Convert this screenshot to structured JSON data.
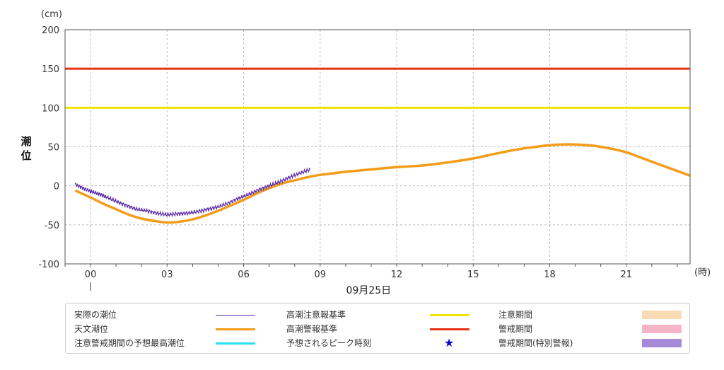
{
  "chart_data": {
    "type": "line",
    "yunit": "(cm)",
    "ylabel": "潮位",
    "xunit": "(時)",
    "date_label": "09月25日",
    "ylim": [
      -100,
      200
    ],
    "yticks": [
      -100,
      -50,
      0,
      50,
      100,
      150,
      200
    ],
    "xlim": [
      -1,
      23.5
    ],
    "xticks": [
      0,
      3,
      6,
      9,
      12,
      15,
      18,
      21
    ],
    "xtick_labels": [
      "00",
      "03",
      "06",
      "09",
      "12",
      "15",
      "18",
      "21"
    ],
    "grid": true,
    "thresholds": [
      {
        "name": "高潮警報基準",
        "value": 150,
        "color": "#e53314"
      },
      {
        "name": "高潮注意報基準",
        "value": 100,
        "color": "#f2e200"
      }
    ],
    "series": [
      {
        "name": "天文潮位",
        "color": "#f39c1a",
        "x": [
          -0.6,
          0,
          0.5,
          1,
          1.5,
          2,
          2.5,
          3,
          3.5,
          4,
          4.5,
          5,
          5.5,
          6,
          6.5,
          7,
          7.5,
          8,
          8.5,
          9,
          9.5,
          10,
          11,
          12,
          13,
          14,
          15,
          16,
          17,
          18,
          18.5,
          19,
          19.5,
          20,
          20.5,
          21,
          21.5,
          22,
          22.5,
          23,
          23.5
        ],
        "y": [
          -6,
          -15,
          -23,
          -30,
          -37,
          -42,
          -45,
          -47,
          -46,
          -43,
          -38,
          -32,
          -25,
          -18,
          -10,
          -3,
          3,
          7,
          11,
          14,
          16,
          18,
          21,
          24,
          26,
          30,
          35,
          42,
          48,
          52,
          53,
          53,
          52,
          50,
          47,
          43,
          37,
          31,
          25,
          19,
          13
        ]
      },
      {
        "name": "実際の潮位",
        "color": "#5a2aa8",
        "x": [
          -0.6,
          -0.3,
          0,
          0.3,
          0.6,
          1,
          1.4,
          1.8,
          2.2,
          2.6,
          3,
          3.4,
          3.8,
          4.2,
          4.6,
          5,
          5.4,
          5.8,
          6.2,
          6.6,
          7,
          7.4,
          7.8,
          8.2,
          8.6
        ],
        "y": [
          2,
          -3,
          -7,
          -10,
          -14,
          -20,
          -25,
          -30,
          -32,
          -35,
          -37,
          -36,
          -35,
          -33,
          -30,
          -27,
          -22,
          -16,
          -11,
          -5,
          0,
          5,
          11,
          16,
          21
        ]
      }
    ]
  },
  "legend": {
    "items": [
      {
        "label": "実際の潮位",
        "kind": "line",
        "color": "#5a2aa8"
      },
      {
        "label": "高潮注意報基準",
        "kind": "line",
        "color": "#f2e200"
      },
      {
        "label": "注意期間",
        "kind": "box",
        "color": "#f9dcb3"
      },
      {
        "label": "天文潮位",
        "kind": "line",
        "color": "#f39c1a"
      },
      {
        "label": "高潮警報基準",
        "kind": "line",
        "color": "#e53314"
      },
      {
        "label": "警戒期間",
        "kind": "box",
        "color": "#f7b4c6"
      },
      {
        "label": "注意警戒期間の予想最高潮位",
        "kind": "line",
        "color": "#28e0f0"
      },
      {
        "label": "予想されるピーク時刻",
        "kind": "star",
        "color": "#0000dd"
      },
      {
        "label": "警戒期間(特別警報)",
        "kind": "box",
        "color": "#a68ad8"
      }
    ]
  }
}
